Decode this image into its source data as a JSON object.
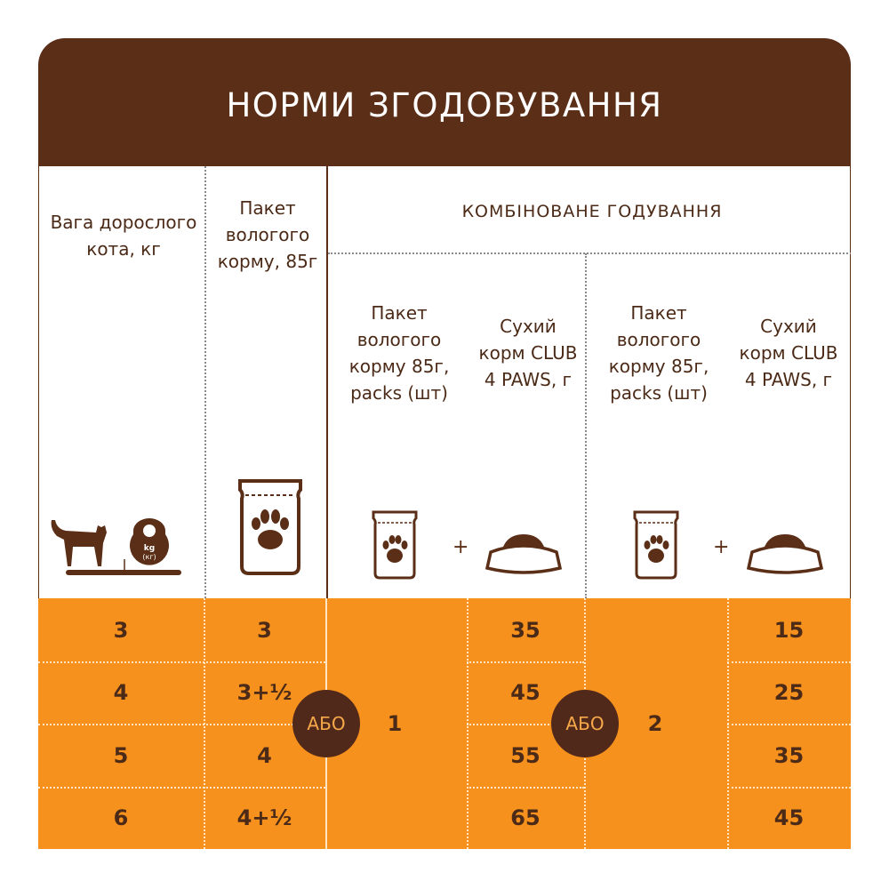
{
  "title": "НОРМИ ЗГОДОВУВАННЯ",
  "headers": {
    "weight": "Вага дорослого кота, кг",
    "wet_pack": "Пакет вологого корму, 85г",
    "combined": "КОМБІНОВАНЕ ГОДУВАННЯ",
    "combo_wet_1": "Пакет вологого корму 85г, packs (шт)",
    "combo_dry_1": "Сухий корм CLUB 4 PAWS, г",
    "combo_wet_2": "Пакет вологого корму 85г, packs (шт)",
    "combo_dry_2": "Сухий корм CLUB 4 PAWS, г"
  },
  "icons": {
    "weight": "cat-on-scale-with-kettlebell-icon",
    "kettlebell_label": "kg (кг)",
    "wet_pack": "pouch-with-paw-icon",
    "dry": "food-bowl-icon",
    "plus": "+"
  },
  "or_label": "АБО",
  "rows": [
    {
      "weight": "3",
      "wet_only": "3",
      "dry_1": "35",
      "dry_2": "15"
    },
    {
      "weight": "4",
      "wet_only": "3+½",
      "dry_1": "45",
      "dry_2": "25"
    },
    {
      "weight": "5",
      "wet_only": "4",
      "dry_1": "55",
      "dry_2": "35"
    },
    {
      "weight": "6",
      "wet_only": "4+½",
      "dry_1": "65",
      "dry_2": "45"
    }
  ],
  "combo_wet_1_value": "1",
  "combo_wet_2_value": "2",
  "colors": {
    "brown": "#5b2f17",
    "orange": "#f7911d"
  }
}
